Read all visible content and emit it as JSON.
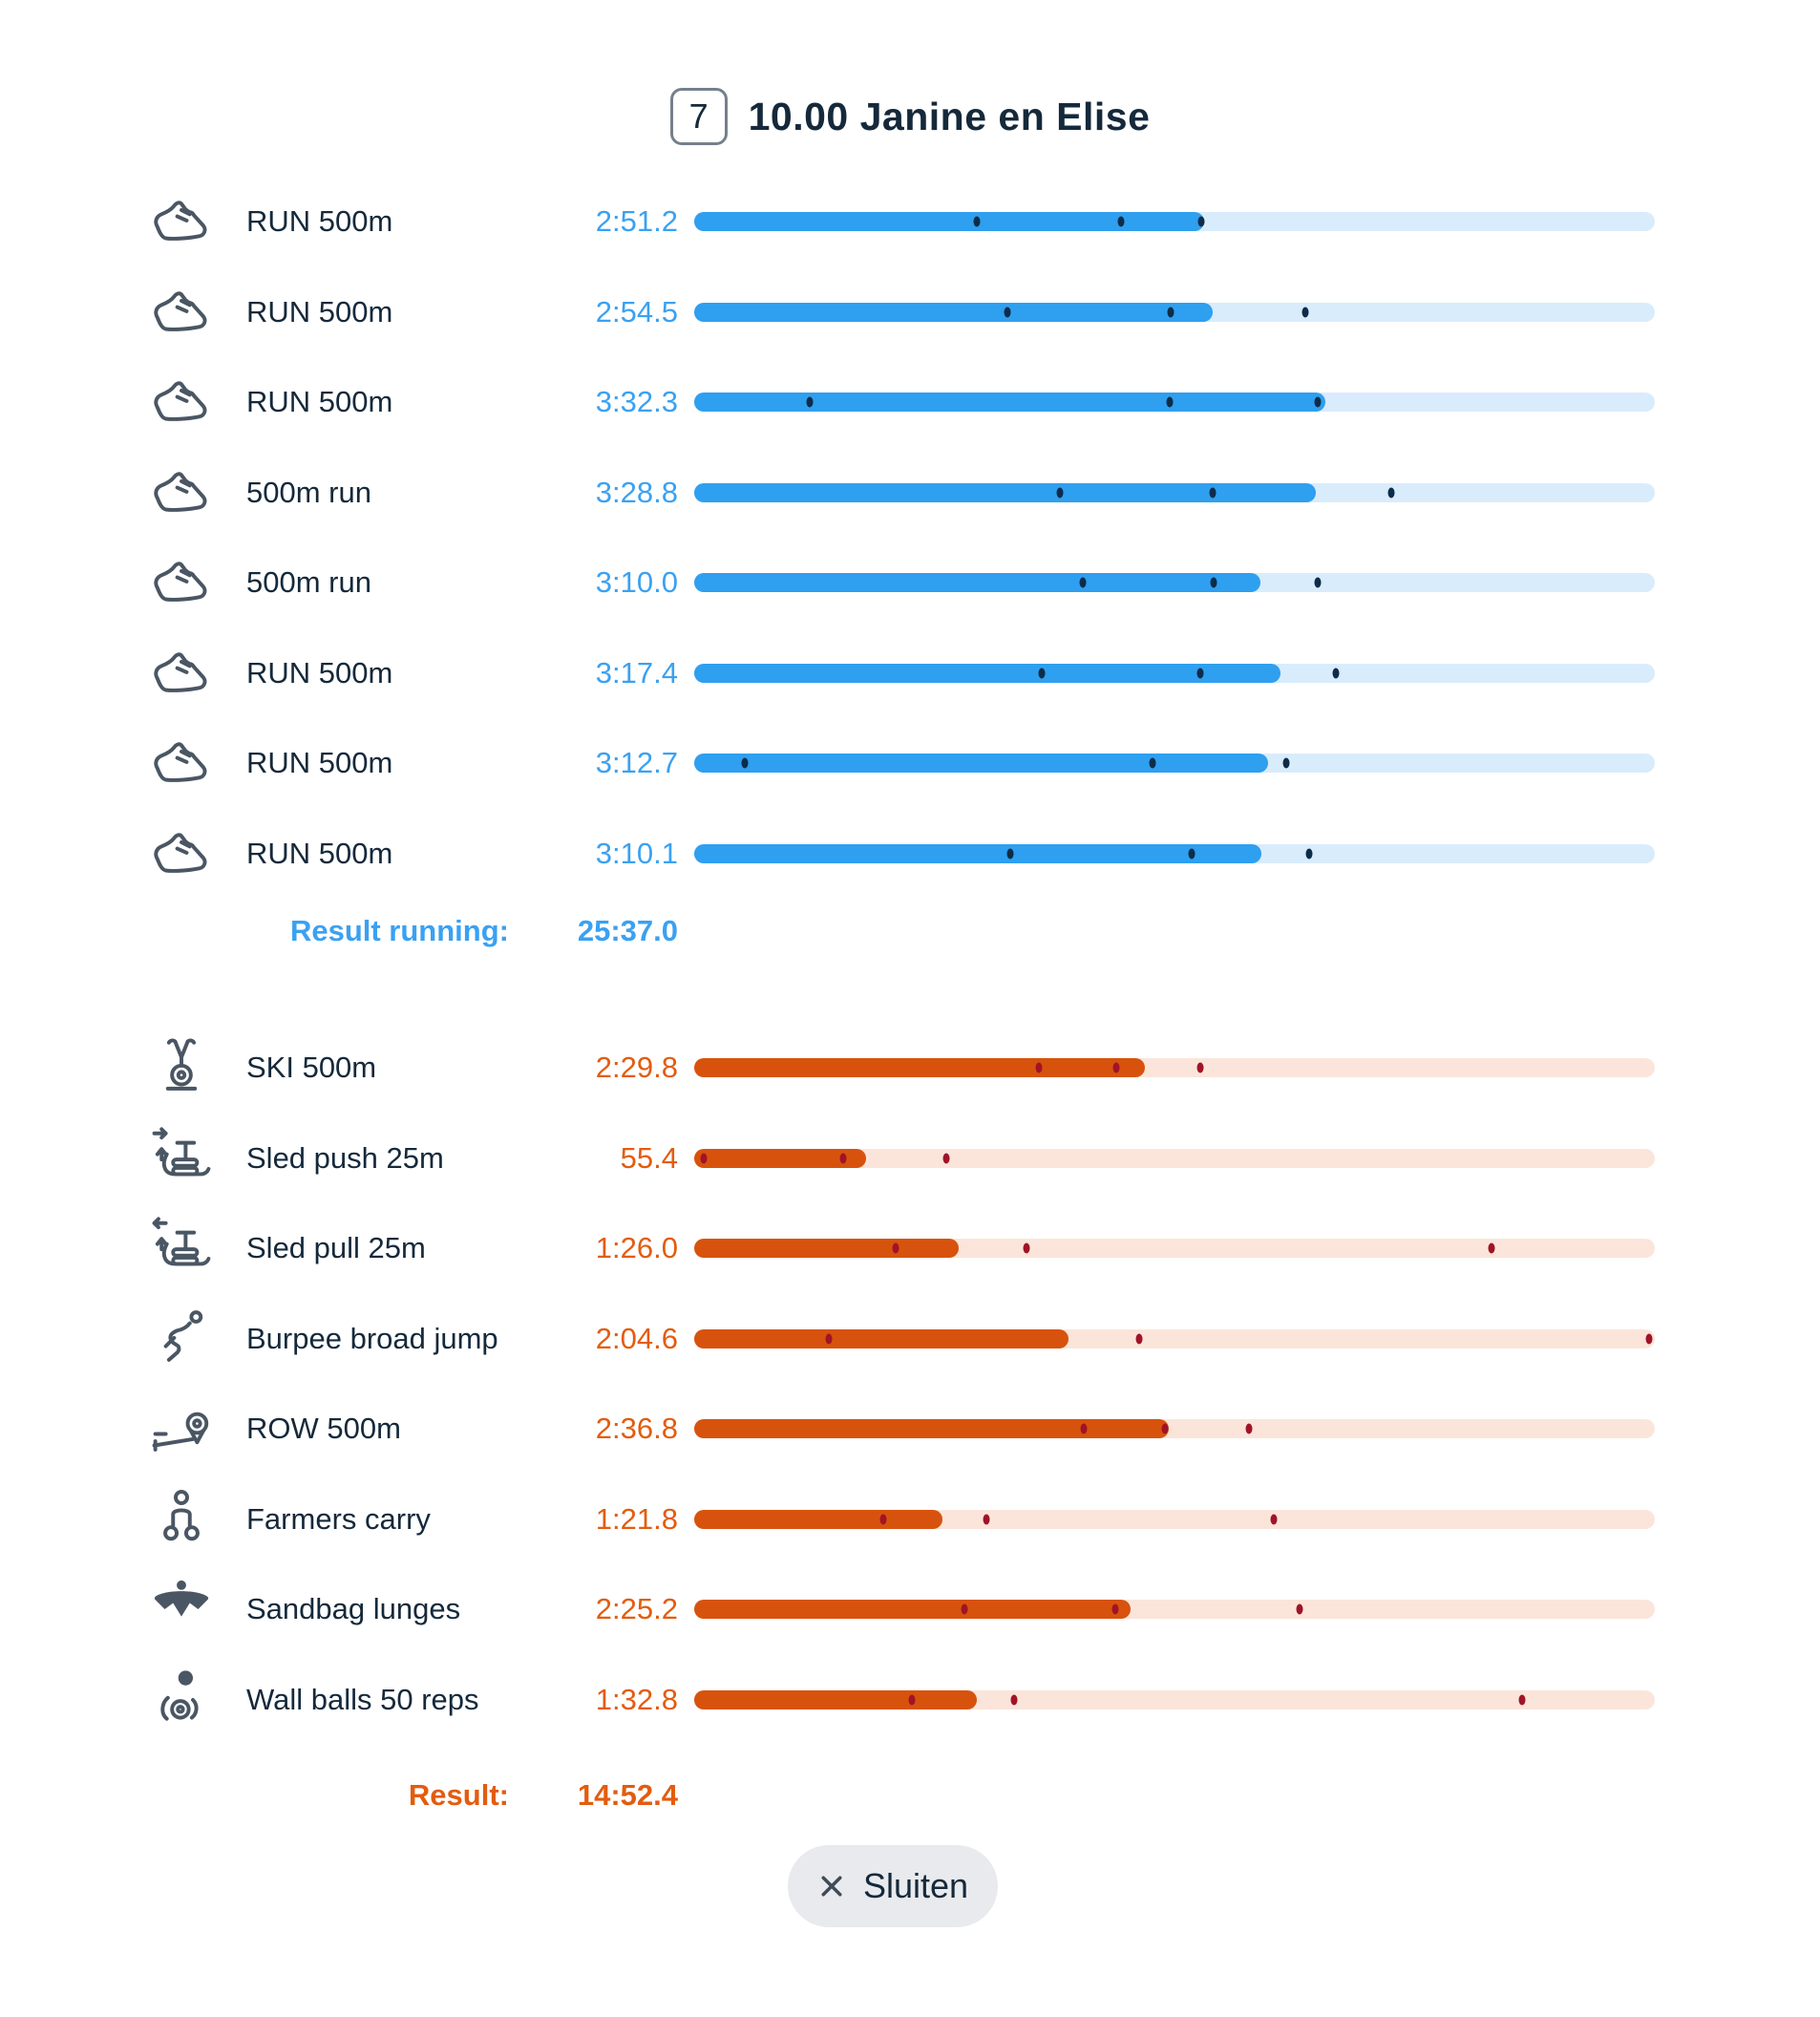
{
  "header": {
    "badge": "7",
    "title": "10.00 Janine en Elise"
  },
  "footer": {
    "close_label": "Sluiten",
    "close_icon": "close-icon"
  },
  "colors": {
    "navy": "#15293B",
    "icon_gray": "#4A5663",
    "button_bg": "#E8EAED",
    "blue_fill": "#2F9FF0",
    "blue_track": "#D9ECFC",
    "blue_text": "#3AA1F2",
    "blue_dot": "#0D2C49",
    "orange_fill": "#D7530D",
    "orange_track": "#FBE5DA",
    "orange_text": "#E35C0F",
    "orange_dot": "#A01427"
  },
  "chart_data": {
    "type": "bar",
    "orientation": "horizontal",
    "value_format": "m:ss.t",
    "scale_max_seconds": 323,
    "legend": "filled bar = this team's split; small dots = comparison split markers",
    "sections": [
      {
        "name": "running",
        "bar_color": "#2F9FF0",
        "track_color": "#D9ECFC",
        "text_color": "#3AA1F2",
        "dot_color": "#0D2C49",
        "rows": [
          {
            "icon": "running-shoe-icon",
            "label": "RUN 500m",
            "time": "2:51.2",
            "seconds": 171.2,
            "fill": 0.531,
            "dots": [
              0.294,
              0.444,
              0.528
            ]
          },
          {
            "icon": "running-shoe-icon",
            "label": "RUN 500m",
            "time": "2:54.5",
            "seconds": 174.5,
            "fill": 0.54,
            "dots": [
              0.326,
              0.496,
              0.636
            ]
          },
          {
            "icon": "running-shoe-icon",
            "label": "RUN 500m",
            "time": "3:32.3",
            "seconds": 212.3,
            "fill": 0.657,
            "dots": [
              0.12,
              0.495,
              0.649
            ]
          },
          {
            "icon": "running-shoe-icon",
            "label": "500m run",
            "time": "3:28.8",
            "seconds": 208.8,
            "fill": 0.647,
            "dots": [
              0.381,
              0.54,
              0.726
            ]
          },
          {
            "icon": "running-shoe-icon",
            "label": "500m run",
            "time": "3:10.0",
            "seconds": 190.0,
            "fill": 0.589,
            "dots": [
              0.405,
              0.541,
              0.649
            ]
          },
          {
            "icon": "running-shoe-icon",
            "label": "RUN 500m",
            "time": "3:17.4",
            "seconds": 197.4,
            "fill": 0.61,
            "dots": [
              0.362,
              0.527,
              0.668
            ]
          },
          {
            "icon": "running-shoe-icon",
            "label": "RUN 500m",
            "time": "3:12.7",
            "seconds": 192.7,
            "fill": 0.597,
            "dots": [
              0.053,
              0.477,
              0.616
            ]
          },
          {
            "icon": "running-shoe-icon",
            "label": "RUN 500m",
            "time": "3:10.1",
            "seconds": 190.1,
            "fill": 0.59,
            "dots": [
              0.329,
              0.518,
              0.64
            ]
          }
        ],
        "result_label": "Result running:",
        "result_value": "25:37.0"
      },
      {
        "name": "stations",
        "bar_color": "#D7530D",
        "track_color": "#FBE5DA",
        "text_color": "#E35C0F",
        "dot_color": "#A01427",
        "rows": [
          {
            "icon": "ski-erg-icon",
            "label": "SKI 500m",
            "time": "2:29.8",
            "seconds": 149.8,
            "fill": 0.469,
            "dots": [
              0.359,
              0.439,
              0.527
            ]
          },
          {
            "icon": "sled-push-icon",
            "label": "Sled push 25m",
            "time": "55.4",
            "seconds": 55.4,
            "fill": 0.179,
            "dots": [
              0.01,
              0.155,
              0.262
            ]
          },
          {
            "icon": "sled-pull-icon",
            "label": "Sled pull 25m",
            "time": "1:26.0",
            "seconds": 86.0,
            "fill": 0.275,
            "dots": [
              0.21,
              0.346,
              0.83
            ]
          },
          {
            "icon": "burpee-icon",
            "label": "Burpee broad jump",
            "time": "2:04.6",
            "seconds": 124.6,
            "fill": 0.39,
            "dots": [
              0.14,
              0.463,
              0.994
            ]
          },
          {
            "icon": "rower-icon",
            "label": "ROW 500m",
            "time": "2:36.8",
            "seconds": 156.8,
            "fill": 0.494,
            "dots": [
              0.406,
              0.49,
              0.578
            ]
          },
          {
            "icon": "farmers-carry-icon",
            "label": "Farmers carry",
            "time": "1:21.8",
            "seconds": 81.8,
            "fill": 0.258,
            "dots": [
              0.197,
              0.304,
              0.603
            ]
          },
          {
            "icon": "sandbag-icon",
            "label": "Sandbag lunges",
            "time": "2:25.2",
            "seconds": 145.2,
            "fill": 0.454,
            "dots": [
              0.281,
              0.438,
              0.63
            ]
          },
          {
            "icon": "wall-ball-icon",
            "label": "Wall balls 50 reps",
            "time": "1:32.8",
            "seconds": 92.8,
            "fill": 0.294,
            "dots": [
              0.227,
              0.333,
              0.862
            ]
          }
        ],
        "result_label": "Result:",
        "result_value": "14:52.4"
      }
    ]
  }
}
